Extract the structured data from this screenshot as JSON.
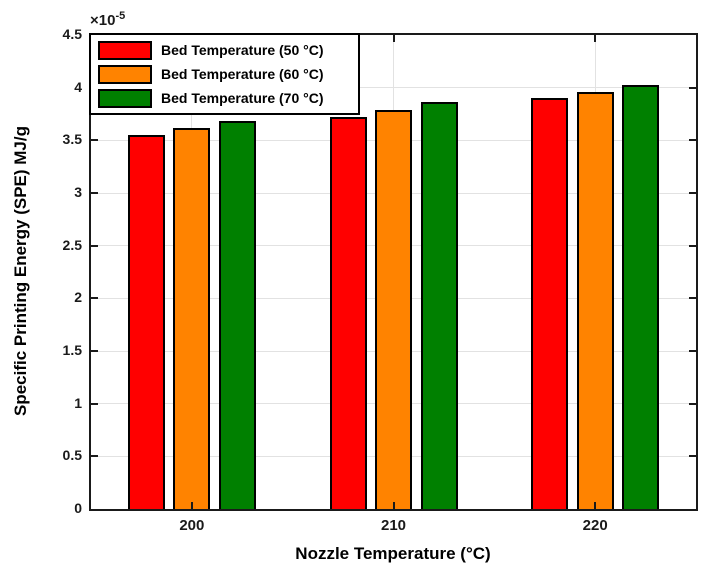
{
  "figure": {
    "multiplier_base": "×10",
    "multiplier_exp": "-5"
  },
  "chart_data": {
    "type": "bar",
    "title": "",
    "xlabel": "Nozzle Temperature (°C)",
    "ylabel": "Specific Printing Energy (SPE) MJ/g",
    "y_axis_multiplier_label": "×10⁻⁵",
    "categories": [
      "200",
      "210",
      "220"
    ],
    "series": [
      {
        "name": "Bed Temperature (50 °C)",
        "color": "#ff0000",
        "values": [
          3.55,
          3.72,
          3.9
        ]
      },
      {
        "name": "Bed Temperature (60 °C)",
        "color": "#ff8300",
        "values": [
          3.62,
          3.79,
          3.96
        ]
      },
      {
        "name": "Bed Temperature (70 °C)",
        "color": "#008000",
        "values": [
          3.68,
          3.86,
          4.03
        ]
      }
    ],
    "values_unit": "×10⁻⁵ MJ/g",
    "ylim": [
      0,
      4.5
    ],
    "y_ticks": [
      0,
      0.5,
      1,
      1.5,
      2,
      2.5,
      3,
      3.5,
      4,
      4.5
    ],
    "y_tick_labels": [
      "0",
      "0.5",
      "1",
      "1.5",
      "2",
      "2.5",
      "3",
      "3.5",
      "4",
      "4.5"
    ],
    "grid": true,
    "legend_position": "northwest",
    "colors": {
      "axis": "#1a1a1a",
      "grid": "#e2e2e2",
      "bar_edge": "#000000",
      "background": "#ffffff"
    }
  }
}
